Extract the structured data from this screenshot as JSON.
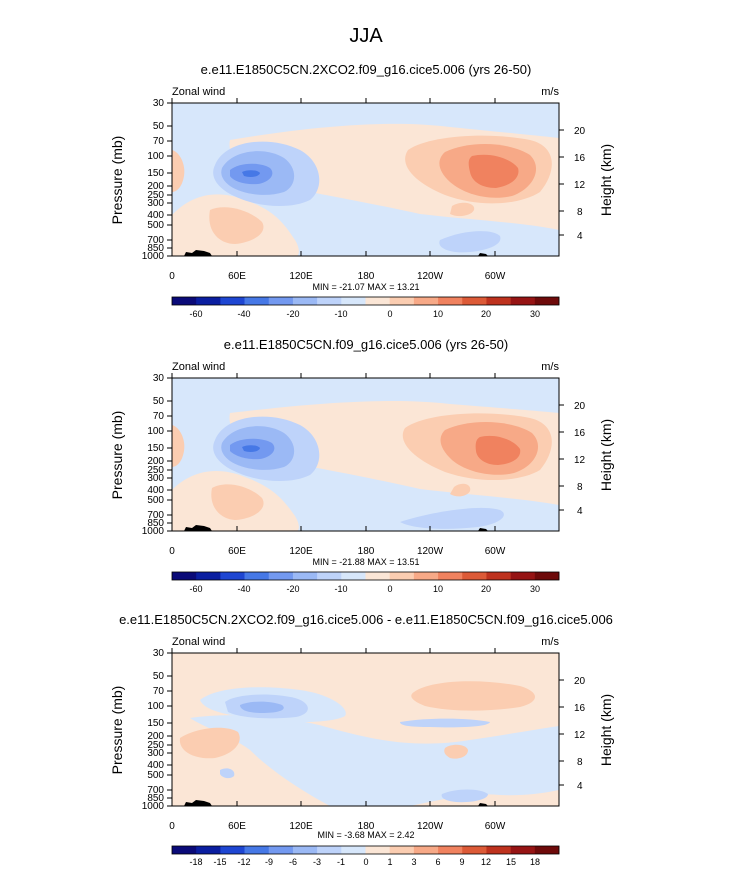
{
  "page": {
    "title": "JJA"
  },
  "colors": {
    "palette": [
      "#0a0a78",
      "#0a1ea0",
      "#1e46d2",
      "#4678e6",
      "#7399f0",
      "#9bb9f5",
      "#bed3fa",
      "#d7e7fb",
      "#fbe6d6",
      "#fbcdb1",
      "#f7a987",
      "#f0825f",
      "#dc5a37",
      "#be321e",
      "#961414",
      "#6e0a0a"
    ],
    "land": "#000000"
  },
  "chart_data": [
    {
      "type": "heatmap",
      "title": "e.e11.E1850C5CN.2XCO2.f09_g16.cice5.006 (yrs 26-50)",
      "variable": "Zonal wind",
      "units": "m/s",
      "ylabel": "Pressure (mb)",
      "y2label": "Height (km)",
      "x_ticks": [
        "0",
        "60E",
        "120E",
        "180",
        "120W",
        "60W"
      ],
      "y_ticks": [
        "30",
        "50",
        "70",
        "100",
        "150",
        "200",
        "250",
        "300",
        "400",
        "500",
        "700",
        "850",
        "1000"
      ],
      "y2_ticks": [
        "20",
        "16",
        "12",
        "8",
        "4"
      ],
      "stats": "MIN = -21.07  MAX =  13.21",
      "colorbar_labels": [
        "-60",
        "-40",
        "-20",
        "-10",
        "0",
        "10",
        "20",
        "30"
      ],
      "features": [
        {
          "type": "low",
          "lon": 78,
          "p": 150,
          "value": -20
        },
        {
          "type": "high",
          "lon": 300,
          "p": 150,
          "value": 13
        }
      ]
    },
    {
      "type": "heatmap",
      "title": "e.e11.E1850C5CN.f09_g16.cice5.006 (yrs 26-50)",
      "variable": "Zonal wind",
      "units": "m/s",
      "ylabel": "Pressure (mb)",
      "y2label": "Height (km)",
      "x_ticks": [
        "0",
        "60E",
        "120E",
        "180",
        "120W",
        "60W"
      ],
      "y_ticks": [
        "30",
        "50",
        "70",
        "100",
        "150",
        "200",
        "250",
        "300",
        "400",
        "500",
        "700",
        "850",
        "1000"
      ],
      "y2_ticks": [
        "20",
        "16",
        "12",
        "8",
        "4"
      ],
      "stats": "MIN = -21.88  MAX =  13.51",
      "colorbar_labels": [
        "-60",
        "-40",
        "-20",
        "-10",
        "0",
        "10",
        "20",
        "30"
      ],
      "features": [
        {
          "type": "low",
          "lon": 78,
          "p": 150,
          "value": -21
        },
        {
          "type": "high",
          "lon": 303,
          "p": 150,
          "value": 13
        }
      ]
    },
    {
      "type": "heatmap",
      "title": "e.e11.E1850C5CN.2XCO2.f09_g16.cice5.006 - e.e11.E1850C5CN.f09_g16.cice5.006",
      "variable": "Zonal wind",
      "units": "m/s",
      "ylabel": "Pressure (mb)",
      "y2label": "Height (km)",
      "x_ticks": [
        "0",
        "60E",
        "120E",
        "180",
        "120W",
        "60W"
      ],
      "y_ticks": [
        "30",
        "50",
        "70",
        "100",
        "150",
        "200",
        "250",
        "300",
        "400",
        "500",
        "700",
        "850",
        "1000"
      ],
      "y2_ticks": [
        "20",
        "16",
        "12",
        "8",
        "4"
      ],
      "stats": "MIN = -3.68  MAX =  2.42",
      "colorbar_labels": [
        "-18",
        "-15",
        "-12",
        "-9",
        "-6",
        "-3",
        "-1",
        "0",
        "1",
        "3",
        "6",
        "9",
        "12",
        "15",
        "18"
      ],
      "features": [
        {
          "type": "low",
          "lon": 85,
          "p": 100,
          "value": -3
        },
        {
          "type": "high",
          "lon": 300,
          "p": 70,
          "value": 2
        }
      ]
    }
  ]
}
